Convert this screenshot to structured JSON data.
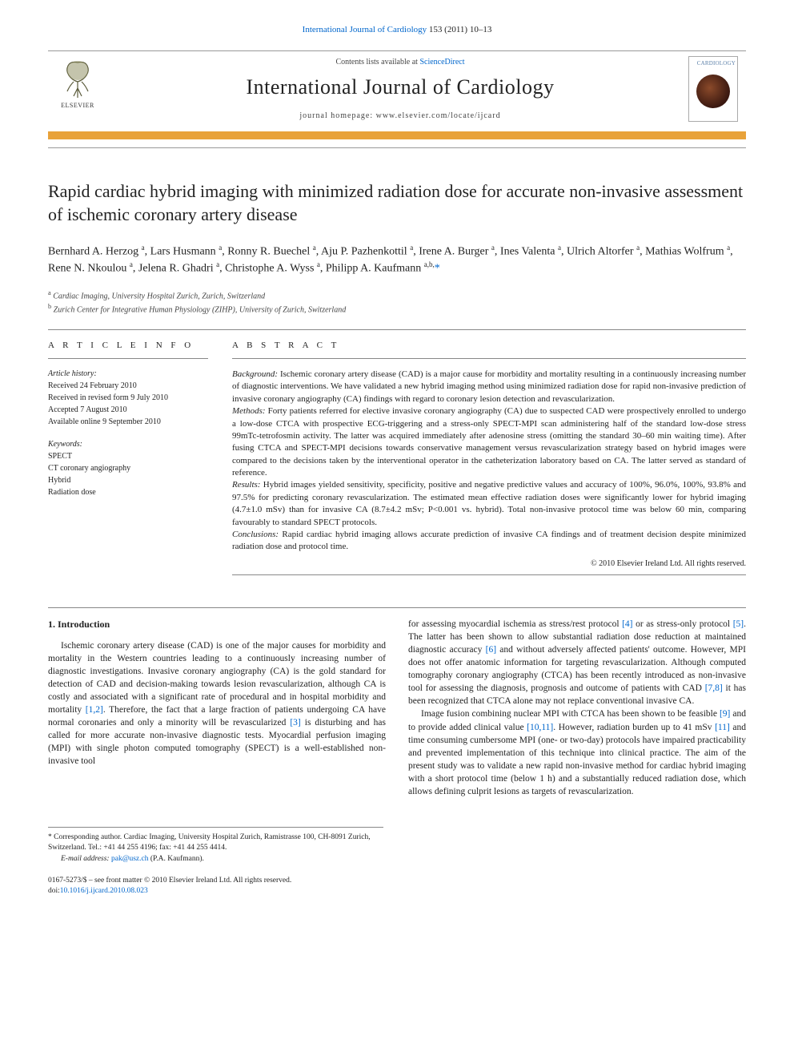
{
  "journal_ref": {
    "journal_link": "International Journal of Cardiology",
    "citation": " 153 (2011) 10–13"
  },
  "masthead": {
    "contents_prefix": "Contents lists available at ",
    "contents_link": "ScienceDirect",
    "journal_title": "International Journal of Cardiology",
    "homepage_label": "journal homepage: www.elsevier.com/locate/ijcard",
    "elsevier_label": "ELSEVIER",
    "cover_title": "CARDIOLOGY"
  },
  "title": "Rapid cardiac hybrid imaging with minimized radiation dose for accurate non-invasive assessment of ischemic coronary artery disease",
  "authors_html": "Bernhard A. Herzog <sup>a</sup>, Lars Husmann <sup>a</sup>, Ronny R. Buechel <sup>a</sup>, Aju P. Pazhenkottil <sup>a</sup>, Irene A. Burger <sup>a</sup>, Ines Valenta <sup>a</sup>, Ulrich Altorfer <sup>a</sup>, Mathias Wolfrum <sup>a</sup>, Rene N. Nkoulou <sup>a</sup>, Jelena R. Ghadri <sup>a</sup>, Christophe A. Wyss <sup>a</sup>, Philipp A. Kaufmann <sup>a,b,</sup><a href=\"#\" class=\"star\">*</a>",
  "affiliations": {
    "a": "Cardiac Imaging, University Hospital Zurich, Zurich, Switzerland",
    "b": "Zurich Center for Integrative Human Physiology (ZIHP), University of Zurich, Switzerland"
  },
  "article_info": {
    "header": "A R T I C L E   I N F O",
    "history_label": "Article history:",
    "received": "Received 24 February 2010",
    "revised": "Received in revised form 9 July 2010",
    "accepted": "Accepted 7 August 2010",
    "online": "Available online 9 September 2010",
    "keywords_label": "Keywords:",
    "keywords": [
      "SPECT",
      "CT coronary angiography",
      "Hybrid",
      "Radiation dose"
    ]
  },
  "abstract": {
    "header": "A B S T R A C T",
    "sections": [
      {
        "label": "Background:",
        "text": " Ischemic coronary artery disease (CAD) is a major cause for morbidity and mortality resulting in a continuously increasing number of diagnostic interventions. We have validated a new hybrid imaging method using minimized radiation dose for rapid non-invasive prediction of invasive coronary angiography (CA) findings with regard to coronary lesion detection and revascularization."
      },
      {
        "label": "Methods:",
        "text": " Forty patients referred for elective invasive coronary angiography (CA) due to suspected CAD were prospectively enrolled to undergo a low-dose CTCA with prospective ECG-triggering and a stress-only SPECT-MPI scan administering half of the standard low-dose stress 99mTc-tetrofosmin activity. The latter was acquired immediately after adenosine stress (omitting the standard 30–60 min waiting time). After fusing CTCA and SPECT-MPI decisions towards conservative management versus revascularization strategy based on hybrid images were compared to the decisions taken by the interventional operator in the catheterization laboratory based on CA. The latter served as standard of reference."
      },
      {
        "label": "Results:",
        "text": " Hybrid images yielded sensitivity, specificity, positive and negative predictive values and accuracy of 100%, 96.0%, 100%, 93.8% and 97.5% for predicting coronary revascularization. The estimated mean effective radiation doses were significantly lower for hybrid imaging (4.7±1.0 mSv) than for invasive CA (8.7±4.2 mSv; P<0.001 vs. hybrid). Total non-invasive protocol time was below 60 min, comparing favourably to standard SPECT protocols."
      },
      {
        "label": "Conclusions:",
        "text": " Rapid cardiac hybrid imaging allows accurate prediction of invasive CA findings and of treatment decision despite minimized radiation dose and protocol time."
      }
    ],
    "copyright": "© 2010 Elsevier Ireland Ltd. All rights reserved."
  },
  "body": {
    "intro_heading": "1. Introduction",
    "col1_p1_a": "Ischemic coronary artery disease (CAD) is one of the major causes for morbidity and mortality in the Western countries leading to a continuously increasing number of diagnostic investigations. Invasive coronary angiography (CA) is the gold standard for detection of CAD and decision-making towards lesion revascularization, although CA is costly and associated with a significant rate of procedural and in hospital morbidity and mortality ",
    "col1_ref1": "[1,2]",
    "col1_p1_b": ". Therefore, the fact that a large fraction of patients undergoing CA have normal coronaries and only a minority will be revascularized ",
    "col1_ref2": "[3]",
    "col1_p1_c": " is disturbing and has called for more accurate non-invasive diagnostic tests. Myocardial perfusion imaging (MPI) with single photon computed tomography (SPECT) is a well-established non-invasive tool",
    "col2_p1_a": "for assessing myocardial ischemia as stress/rest protocol ",
    "col2_ref1": "[4]",
    "col2_p1_b": " or as stress-only protocol ",
    "col2_ref2": "[5]",
    "col2_p1_c": ". The latter has been shown to allow substantial radiation dose reduction at maintained diagnostic accuracy ",
    "col2_ref3": "[6]",
    "col2_p1_d": " and without adversely affected patients' outcome. However, MPI does not offer anatomic information for targeting revascularization. Although computed tomography coronary angiography (CTCA) has been recently introduced as non-invasive tool for assessing the diagnosis, prognosis and outcome of patients with CAD ",
    "col2_ref4": "[7,8]",
    "col2_p1_e": " it has been recognized that CTCA alone may not replace conventional invasive CA.",
    "col2_p2_a": "Image fusion combining nuclear MPI with CTCA has been shown to be feasible ",
    "col2_ref5": "[9]",
    "col2_p2_b": " and to provide added clinical value ",
    "col2_ref6": "[10,11]",
    "col2_p2_c": ". However, radiation burden up to 41 mSv ",
    "col2_ref7": "[11]",
    "col2_p2_d": " and time consuming cumbersome MPI (one- or two-day) protocols have impaired practicability and prevented implementation of this technique into clinical practice. The aim of the present study was to validate a new rapid non-invasive method for cardiac hybrid imaging with a short protocol time (below 1 h) and a substantially reduced radiation dose, which allows defining culprit lesions as targets of revascularization."
  },
  "footnote": {
    "corr": "* Corresponding author. Cardiac Imaging, University Hospital Zurich, Ramistrasse 100, CH-8091 Zurich, Switzerland. Tel.: +41 44 255 4196; fax: +41 44 255 4414.",
    "email_label": "E-mail address:",
    "email": "pak@usz.ch",
    "email_who": " (P.A. Kaufmann)."
  },
  "footer": {
    "line1": "0167-5273/$ – see front matter © 2010 Elsevier Ireland Ltd. All rights reserved.",
    "doi_label": "doi:",
    "doi": "10.1016/j.ijcard.2010.08.023"
  }
}
